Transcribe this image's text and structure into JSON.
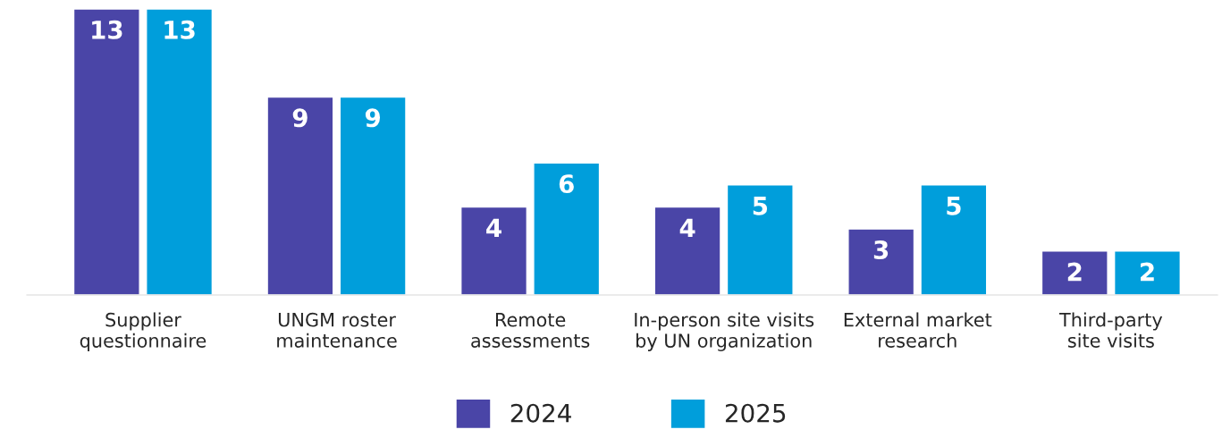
{
  "chart_data": {
    "type": "bar",
    "categories": [
      "Supplier\nquestionnaire",
      "UNGM roster\nmaintenance",
      "Remote\nassessments",
      "In-person site visits\nby UN organization",
      "External market\nresearch",
      "Third-party\nsite visits"
    ],
    "series": [
      {
        "name": "2024",
        "color": "#4a45a7",
        "values": [
          13,
          9,
          4,
          4,
          3,
          2
        ]
      },
      {
        "name": "2025",
        "color": "#009edb",
        "values": [
          13,
          9,
          6,
          5,
          5,
          2
        ]
      }
    ],
    "data_labels": true,
    "legend": "bottom",
    "grid": false
  }
}
